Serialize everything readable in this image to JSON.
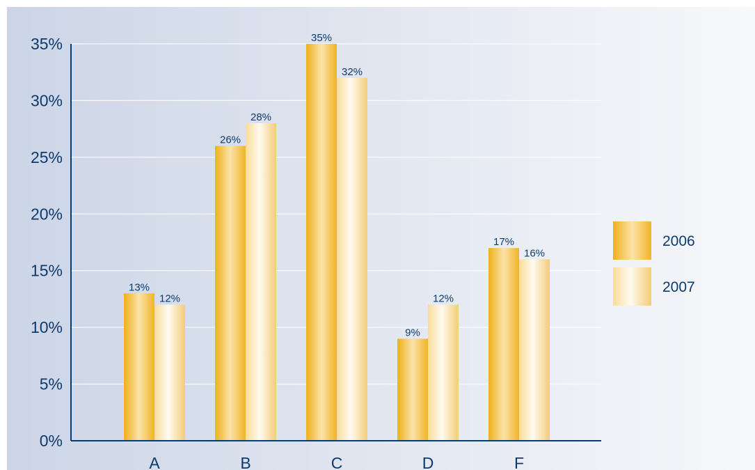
{
  "chart_data": {
    "type": "bar",
    "categories": [
      "A",
      "B",
      "C",
      "D",
      "F"
    ],
    "series": [
      {
        "name": "2006",
        "values": [
          13,
          26,
          35,
          9,
          17
        ]
      },
      {
        "name": "2007",
        "values": [
          12,
          28,
          32,
          12,
          16
        ]
      }
    ],
    "value_labels": [
      [
        "13%",
        "26%",
        "35%",
        "9%",
        "17%"
      ],
      [
        "12%",
        "28%",
        "32%",
        "12%",
        "16%"
      ]
    ],
    "y_ticks": [
      0,
      5,
      10,
      15,
      20,
      25,
      30,
      35
    ],
    "y_tick_labels": [
      "0%",
      "5%",
      "10%",
      "15%",
      "20%",
      "25%",
      "30%",
      "35%"
    ],
    "ylim": [
      0,
      35
    ],
    "grid": true,
    "legend_position": "right",
    "colors": {
      "series_2006": "#f2b623",
      "series_2007": "#f7d583",
      "axis": "#0d3a6e",
      "text": "#0d3a6e",
      "background_left": "#ccd5e6",
      "background_right": "#f7f8fb"
    }
  }
}
